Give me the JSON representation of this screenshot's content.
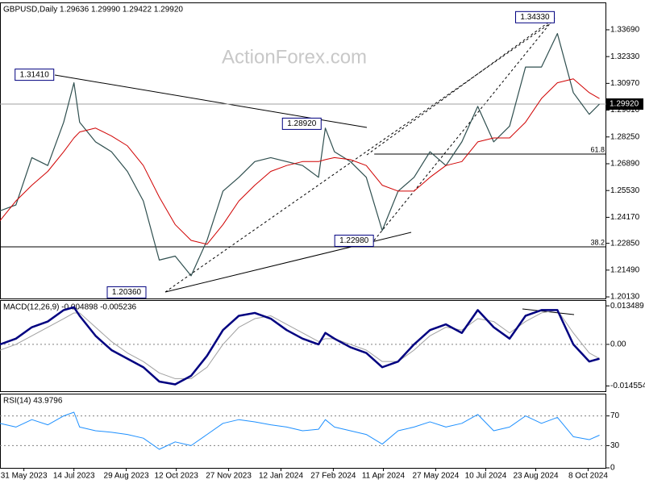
{
  "chart_data": [
    {
      "type": "line",
      "title": "GBPUSD,Daily 1.29636 1.29990 1.29422 1.29920",
      "watermark": "ActionForex.com",
      "xlim": [
        "2023-05-10",
        "2024-10-24"
      ],
      "x": [
        "2023-05-10",
        "2023-05-24",
        "2023-06-07",
        "2023-06-21",
        "2023-07-05",
        "2023-07-14",
        "2023-07-19",
        "2023-08-02",
        "2023-08-16",
        "2023-08-30",
        "2023-09-13",
        "2023-09-27",
        "2023-10-11",
        "2023-10-25",
        "2023-11-08",
        "2023-11-22",
        "2023-12-06",
        "2023-12-20",
        "2024-01-03",
        "2024-01-17",
        "2024-01-31",
        "2024-02-14",
        "2024-02-20",
        "2024-02-28",
        "2024-03-13",
        "2024-03-27",
        "2024-04-10",
        "2024-04-24",
        "2024-05-08",
        "2024-05-22",
        "2024-06-05",
        "2024-06-19",
        "2024-07-03",
        "2024-07-17",
        "2024-07-31",
        "2024-08-14",
        "2024-08-28",
        "2024-09-11",
        "2024-09-25",
        "2024-10-09",
        "2024-10-18"
      ],
      "series": [
        {
          "color": "#2f4f4f",
          "width": 1.2,
          "values": [
            1.245,
            1.248,
            1.272,
            1.268,
            1.29,
            1.31,
            1.29,
            1.28,
            1.275,
            1.265,
            1.25,
            1.22,
            1.222,
            1.212,
            1.23,
            1.255,
            1.262,
            1.27,
            1.272,
            1.27,
            1.268,
            1.262,
            1.287,
            1.275,
            1.27,
            1.262,
            1.235,
            1.255,
            1.262,
            1.275,
            1.268,
            1.28,
            1.298,
            1.28,
            1.288,
            1.318,
            1.318,
            1.335,
            1.305,
            1.294,
            1.2992
          ]
        },
        {
          "color": "#d00000",
          "width": 1,
          "values": [
            1.24,
            1.25,
            1.258,
            1.265,
            1.275,
            1.282,
            1.285,
            1.287,
            1.283,
            1.278,
            1.268,
            1.252,
            1.238,
            1.23,
            1.228,
            1.238,
            1.25,
            1.258,
            1.265,
            1.268,
            1.27,
            1.27,
            1.271,
            1.272,
            1.271,
            1.268,
            1.258,
            1.255,
            1.255,
            1.262,
            1.268,
            1.27,
            1.28,
            1.282,
            1.282,
            1.29,
            1.302,
            1.31,
            1.312,
            1.305,
            1.302
          ]
        }
      ],
      "ylim": [
        1.2005,
        1.3508
      ],
      "yticks": [
        {
          "value": 1.3369,
          "label": "1.33690"
        },
        {
          "value": 1.3233,
          "label": "1.32330"
        },
        {
          "value": 1.3097,
          "label": "1.30970"
        },
        {
          "value": 1.2961,
          "label": "1.29610"
        },
        {
          "value": 1.2825,
          "label": "1.28250"
        },
        {
          "value": 1.2689,
          "label": "1.26890"
        },
        {
          "value": 1.2553,
          "label": "1.25530"
        },
        {
          "value": 1.2417,
          "label": "1.24170"
        },
        {
          "value": 1.2285,
          "label": "1.22850"
        },
        {
          "value": 1.2149,
          "label": "1.21490"
        },
        {
          "value": 1.2013,
          "label": "1.20130"
        }
      ],
      "last_price": {
        "value": 1.2992,
        "label": "1.29920"
      },
      "levels": [
        {
          "label": "61.8",
          "price": 1.2738,
          "start": "2024-04-03"
        },
        {
          "label": "38.2",
          "price": 1.2267,
          "start": "2023-05-10"
        }
      ],
      "annotations": [
        {
          "value": 1.3141,
          "label": "1.31410",
          "x": "2023-06-27"
        },
        {
          "value": 1.2036,
          "label": "1.20360",
          "x": "2023-09-16"
        },
        {
          "value": 1.2892,
          "label": "1.28920",
          "x": "2024-02-17"
        },
        {
          "value": 1.2298,
          "label": "1.22980",
          "x": "2024-04-03"
        },
        {
          "value": 1.3433,
          "label": "1.34330",
          "x": "2024-09-09"
        }
      ]
    },
    {
      "type": "line",
      "title": "MACD(12,26,9) -0.004898 -0.005236",
      "xlim": [
        "2023-05-10",
        "2024-10-24"
      ],
      "x": [
        "2023-05-10",
        "2023-05-24",
        "2023-06-07",
        "2023-06-21",
        "2023-07-05",
        "2023-07-14",
        "2023-07-19",
        "2023-08-02",
        "2023-08-16",
        "2023-08-30",
        "2023-09-13",
        "2023-09-27",
        "2023-10-11",
        "2023-10-25",
        "2023-11-08",
        "2023-11-22",
        "2023-12-06",
        "2023-12-20",
        "2024-01-03",
        "2024-01-17",
        "2024-01-31",
        "2024-02-14",
        "2024-02-20",
        "2024-02-28",
        "2024-03-13",
        "2024-03-27",
        "2024-04-10",
        "2024-04-24",
        "2024-05-08",
        "2024-05-22",
        "2024-06-05",
        "2024-06-19",
        "2024-07-03",
        "2024-07-17",
        "2024-07-31",
        "2024-08-14",
        "2024-08-28",
        "2024-09-11",
        "2024-09-25",
        "2024-10-09",
        "2024-10-18"
      ],
      "series": [
        {
          "color": "#a0a0a0",
          "width": 1,
          "values": [
            -0.002,
            0.0,
            0.003,
            0.006,
            0.009,
            0.011,
            0.011,
            0.006,
            0.001,
            -0.003,
            -0.006,
            -0.01,
            -0.012,
            -0.012,
            -0.008,
            0.0,
            0.006,
            0.009,
            0.01,
            0.007,
            0.004,
            0.001,
            0.002,
            0.002,
            0.0,
            -0.002,
            -0.006,
            -0.006,
            -0.002,
            0.003,
            0.006,
            0.005,
            0.009,
            0.008,
            0.004,
            0.008,
            0.011,
            0.012,
            0.004,
            -0.003,
            -0.005
          ]
        },
        {
          "color": "#000080",
          "width": 2.5,
          "values": [
            0.0,
            0.002,
            0.006,
            0.008,
            0.012,
            0.013,
            0.01,
            0.003,
            -0.002,
            -0.005,
            -0.008,
            -0.013,
            -0.014,
            -0.011,
            -0.004,
            0.005,
            0.01,
            0.011,
            0.009,
            0.005,
            0.002,
            0.0,
            0.004,
            0.002,
            -0.001,
            -0.003,
            -0.008,
            -0.006,
            0.0,
            0.005,
            0.007,
            0.004,
            0.012,
            0.006,
            0.002,
            0.01,
            0.012,
            0.012,
            0.0,
            -0.006,
            -0.005
          ]
        }
      ],
      "ylim": [
        -0.0164,
        0.0155
      ],
      "yticks": [
        0.013489,
        {
          "value": 0,
          "label": "0.00"
        },
        -0.014554
      ],
      "hlines": [
        0
      ]
    },
    {
      "type": "line",
      "title": "RSI(14) 43.9796",
      "xlim": [
        "2023-05-10",
        "2024-10-24"
      ],
      "x": [
        "2023-05-10",
        "2023-05-24",
        "2023-06-07",
        "2023-06-21",
        "2023-07-05",
        "2023-07-14",
        "2023-07-19",
        "2023-08-02",
        "2023-08-16",
        "2023-08-30",
        "2023-09-13",
        "2023-09-27",
        "2023-10-11",
        "2023-10-25",
        "2023-11-08",
        "2023-11-22",
        "2023-12-06",
        "2023-12-20",
        "2024-01-03",
        "2024-01-17",
        "2024-01-31",
        "2024-02-14",
        "2024-02-20",
        "2024-02-28",
        "2024-03-13",
        "2024-03-27",
        "2024-04-10",
        "2024-04-24",
        "2024-05-08",
        "2024-05-22",
        "2024-06-05",
        "2024-06-19",
        "2024-07-03",
        "2024-07-17",
        "2024-07-31",
        "2024-08-14",
        "2024-08-28",
        "2024-09-11",
        "2024-09-25",
        "2024-10-09",
        "2024-10-18"
      ],
      "series": [
        {
          "color": "#1e90ff",
          "width": 1,
          "values": [
            60,
            55,
            65,
            58,
            70,
            75,
            55,
            50,
            48,
            45,
            40,
            25,
            35,
            30,
            45,
            60,
            65,
            62,
            58,
            55,
            50,
            52,
            65,
            55,
            50,
            45,
            32,
            50,
            55,
            62,
            55,
            60,
            72,
            50,
            55,
            70,
            60,
            68,
            42,
            38,
            44
          ]
        }
      ],
      "ylim": [
        0,
        100
      ],
      "yticks": [
        70,
        30,
        0
      ],
      "hlines": [
        70,
        30
      ],
      "xticks": [
        {
          "value": "2023-05-31",
          "label": "31 May 2023"
        },
        {
          "value": "2023-07-14",
          "label": "14 Jul 2023"
        },
        {
          "value": "2023-08-29",
          "label": "29 Aug 2023"
        },
        {
          "value": "2023-10-12",
          "label": "12 Oct 2023"
        },
        {
          "value": "2023-11-27",
          "label": "27 Nov 2023"
        },
        {
          "value": "2024-01-12",
          "label": "12 Jan 2024"
        },
        {
          "value": "2024-02-27",
          "label": "27 Feb 2024"
        },
        {
          "value": "2024-04-11",
          "label": "11 Apr 2024"
        },
        {
          "value": "2024-05-27",
          "label": "27 May 2024"
        },
        {
          "value": "2024-07-10",
          "label": "10 Jul 2024"
        },
        {
          "value": "2024-08-23",
          "label": "23 Aug 2024"
        },
        {
          "value": "2024-10-08",
          "label": "8 Oct 2024"
        }
      ]
    }
  ]
}
